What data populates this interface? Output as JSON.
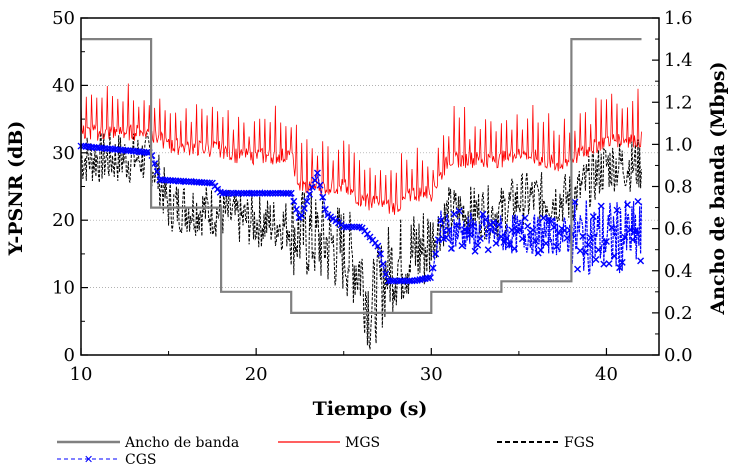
{
  "chart_data": {
    "type": "line",
    "title": "",
    "xlabel": "Tiempo (s)",
    "ylabel_left": "Y-PSNR (dB)",
    "ylabel_right": "Ancho de banda (Mbps)",
    "xlim": [
      10,
      43
    ],
    "ylim_left": [
      0,
      50
    ],
    "ylim_right": [
      0,
      1.6
    ],
    "x_ticks": [
      "10",
      "20",
      "30",
      "40"
    ],
    "y_left_ticks": [
      "0",
      "10",
      "20",
      "30",
      "40",
      "50"
    ],
    "y_right_ticks": [
      "0.0",
      "0.2",
      "0.4",
      "0.6",
      "0.8",
      "1.0",
      "1.2",
      "1.4",
      "1.6"
    ],
    "grid": "horizontal dotted",
    "legend_position": "bottom",
    "colors": {
      "ancho": "#808080",
      "mgs": "#ff0000",
      "fgs": "#000000",
      "cgs": "#0000ff"
    },
    "series": [
      {
        "name": "Ancho de banda",
        "axis": "right",
        "style": "step",
        "x": [
          10,
          14,
          14,
          18,
          18,
          22,
          22,
          30,
          30,
          34,
          34,
          38,
          38,
          42
        ],
        "y": [
          1.5,
          1.5,
          0.7,
          0.7,
          0.3,
          0.3,
          0.2,
          0.2,
          0.3,
          0.3,
          0.35,
          0.35,
          1.5,
          1.5
        ]
      },
      {
        "name": "MGS",
        "axis": "left",
        "x": [
          10,
          14,
          15,
          18,
          19,
          22,
          22.5,
          25,
          26,
          27.5,
          28,
          29,
          30,
          31,
          34,
          35,
          37.5,
          38,
          40,
          42
        ],
        "y": [
          33,
          33,
          31,
          30.5,
          29.5,
          29.5,
          25,
          25,
          23,
          22,
          22,
          24,
          24,
          29,
          29,
          30,
          28,
          29,
          32,
          32
        ]
      },
      {
        "name": "FGS",
        "axis": "left",
        "x": [
          10,
          14,
          15,
          18,
          19,
          22,
          23,
          25,
          26,
          26.5,
          27.5,
          28,
          30,
          31,
          34,
          35,
          37.5,
          38,
          40,
          42
        ],
        "y": [
          30,
          30,
          23,
          22,
          21,
          20,
          19,
          17,
          14,
          8,
          14,
          15,
          18,
          22,
          22,
          24,
          24,
          24,
          29,
          29
        ]
      },
      {
        "name": "CGS",
        "axis": "left",
        "x": [
          10,
          14,
          14.5,
          17.5,
          18,
          22,
          22.5,
          23.5,
          24,
          25,
          26,
          27,
          27.5,
          28,
          29,
          30,
          30.5,
          32,
          34,
          37,
          38,
          42
        ],
        "y": [
          31,
          30,
          26,
          25.5,
          24,
          24,
          20,
          27,
          21,
          19,
          19,
          16,
          11,
          11,
          11,
          11.5,
          18.5,
          18.3,
          18,
          17.8,
          17.5,
          17.5
        ]
      }
    ]
  }
}
